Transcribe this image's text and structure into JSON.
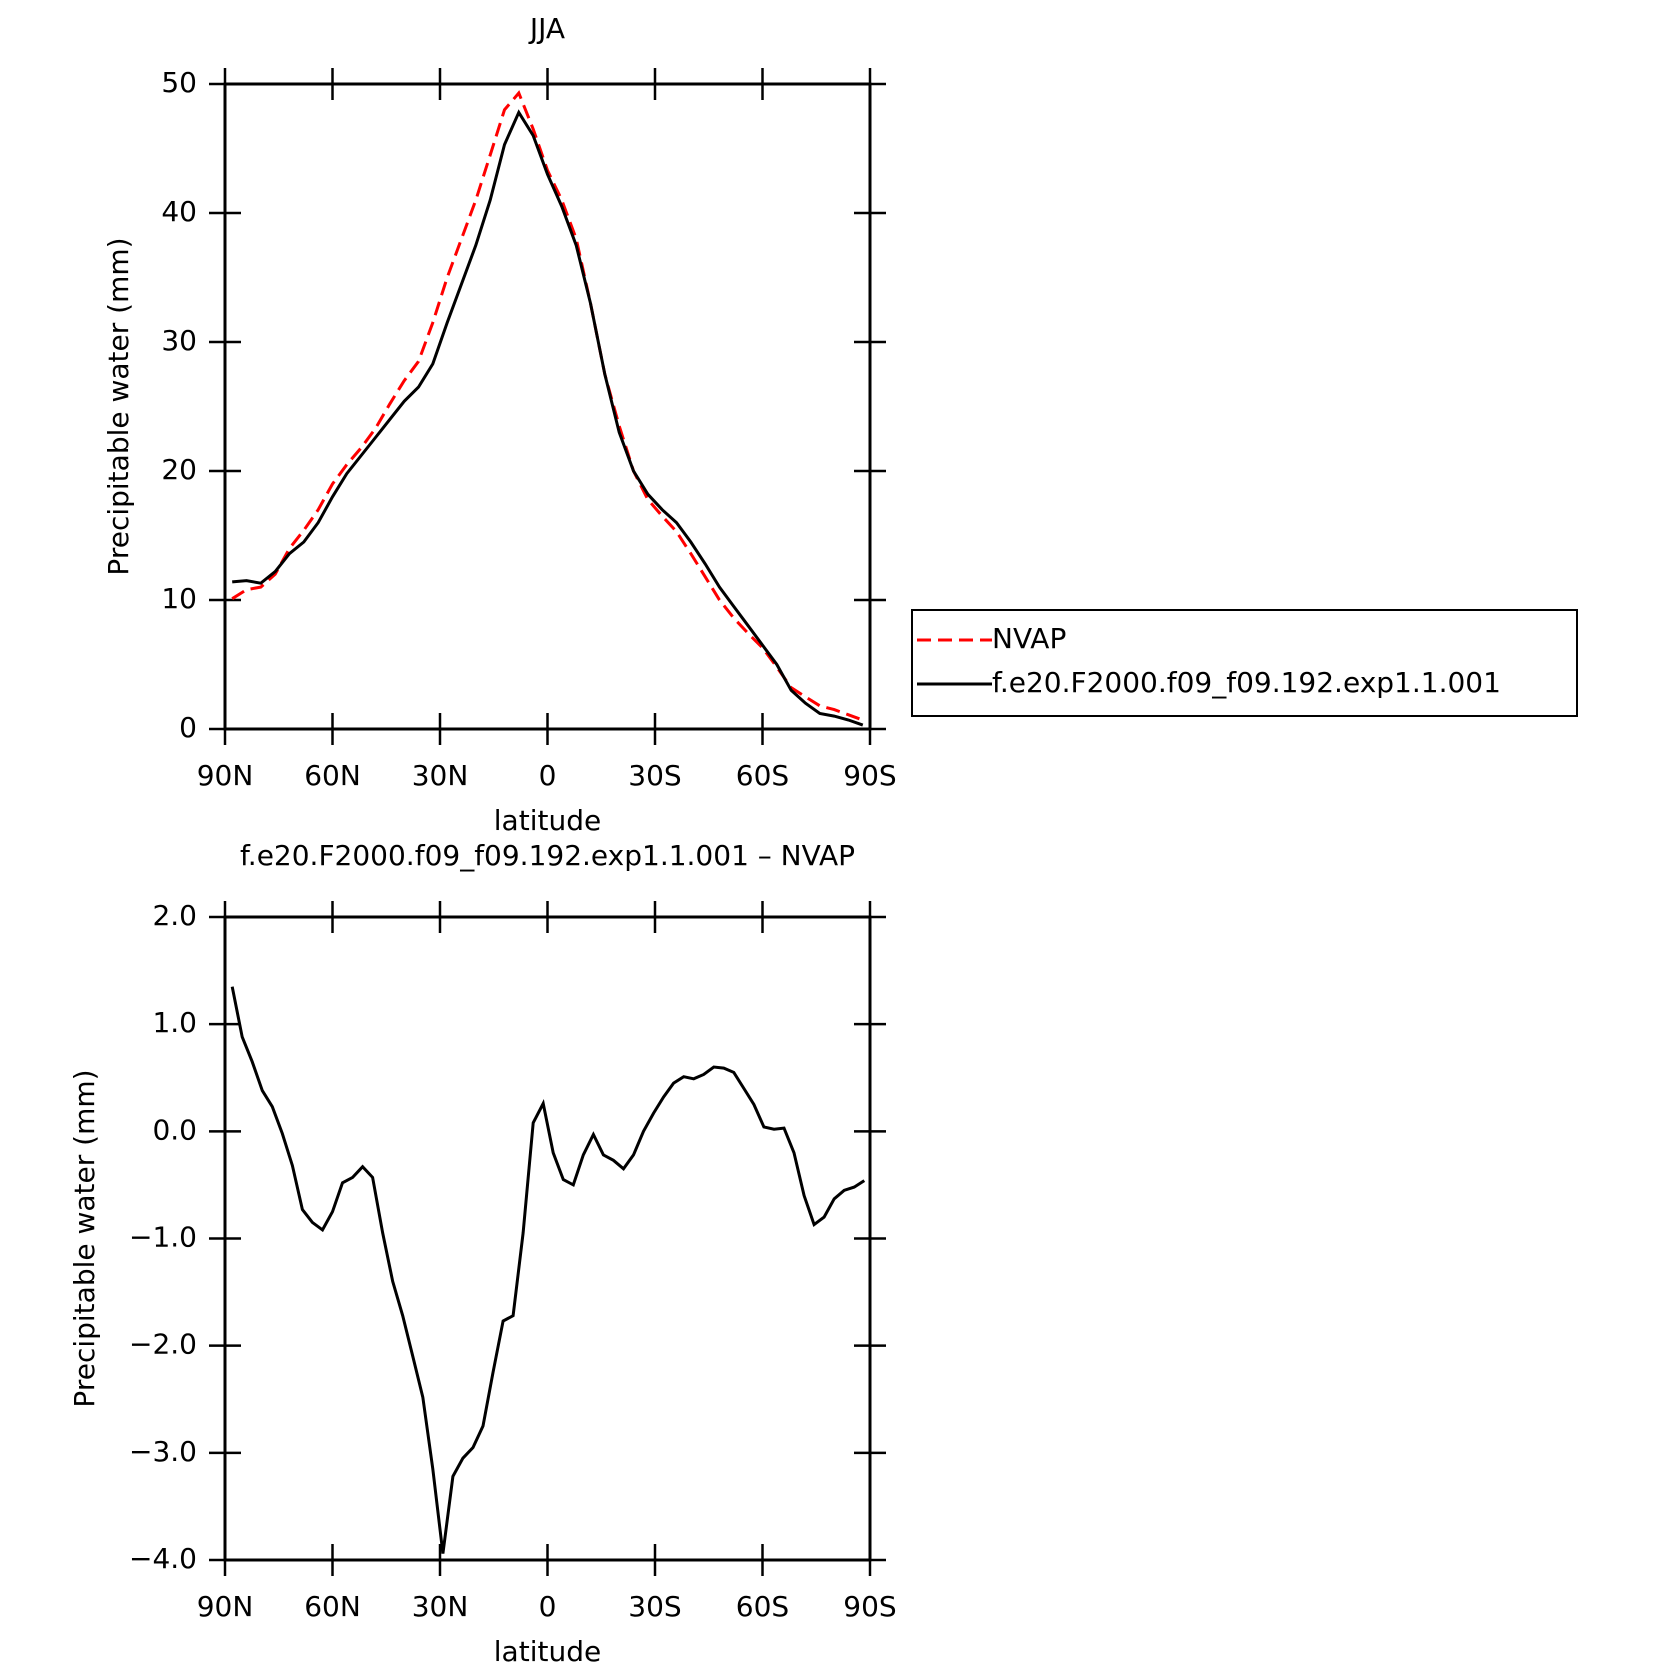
{
  "chart_data": [
    {
      "type": "line",
      "title": "JJA",
      "xlabel": "latitude",
      "ylabel": "Precipitable water (mm)",
      "xlim": [
        90,
        -90
      ],
      "ylim": [
        0,
        50
      ],
      "xticks": [
        {
          "value": 90,
          "label": "90N"
        },
        {
          "value": 60,
          "label": "60N"
        },
        {
          "value": 30,
          "label": "30N"
        },
        0,
        {
          "value": -30,
          "label": "30S"
        },
        {
          "value": -60,
          "label": "60S"
        },
        {
          "value": -90,
          "label": "90S"
        }
      ],
      "yticks": [
        0,
        10,
        20,
        30,
        40,
        50
      ],
      "legend": "right",
      "x": [
        88,
        84,
        80,
        76,
        72,
        68,
        64,
        60,
        56,
        52,
        48,
        44,
        40,
        36,
        32,
        28,
        24,
        20,
        16,
        12,
        8,
        4,
        0,
        -4,
        -8,
        -12,
        -16,
        -20,
        -24,
        -28,
        -32,
        -36,
        -40,
        -44,
        -48,
        -52,
        -56,
        -60,
        -64,
        -68,
        -72,
        -76,
        -80,
        -84,
        -88
      ],
      "series": [
        {
          "name": "NVAP",
          "color": "#ff0000",
          "style": "dashed",
          "values": [
            10.1,
            10.8,
            11.0,
            12.0,
            14.0,
            15.4,
            17.0,
            19.0,
            20.5,
            21.8,
            23.3,
            25.2,
            27.0,
            28.5,
            31.5,
            35.0,
            38.0,
            41.0,
            44.5,
            48.0,
            49.3,
            46.5,
            43.3,
            41.0,
            38.0,
            33.0,
            27.5,
            23.5,
            20.0,
            17.8,
            16.5,
            15.3,
            13.6,
            11.8,
            10.0,
            8.6,
            7.4,
            6.3,
            4.8,
            3.2,
            2.5,
            1.8,
            1.5,
            1.1,
            0.7
          ]
        },
        {
          "name": "f.e20.F2000.f09_f09.192.exp1.1.001",
          "color": "#000000",
          "style": "solid",
          "values": [
            11.4,
            11.5,
            11.3,
            12.2,
            13.6,
            14.5,
            16.0,
            18.0,
            19.8,
            21.2,
            22.6,
            24.0,
            25.4,
            26.5,
            28.3,
            31.5,
            34.5,
            37.5,
            41.0,
            45.3,
            47.8,
            46.0,
            43.0,
            40.5,
            37.5,
            33.0,
            27.5,
            23.0,
            20.0,
            18.2,
            17.0,
            16.0,
            14.5,
            12.8,
            11.0,
            9.5,
            8.0,
            6.5,
            5.0,
            3.0,
            2.0,
            1.2,
            1.0,
            0.7,
            0.3
          ]
        }
      ]
    },
    {
      "type": "line",
      "title": "f.e20.F2000.f09_f09.192.exp1.1.001 – NVAP",
      "xlabel": "latitude",
      "ylabel": "Precipitable water (mm)",
      "xlim": [
        90,
        -90
      ],
      "ylim": [
        -4,
        2
      ],
      "xticks": [
        {
          "value": 90,
          "label": "90N"
        },
        {
          "value": 60,
          "label": "60N"
        },
        {
          "value": 30,
          "label": "30N"
        },
        0,
        {
          "value": -30,
          "label": "30S"
        },
        {
          "value": -60,
          "label": "60S"
        },
        {
          "value": -90,
          "label": "90S"
        }
      ],
      "yticks": [
        {
          "value": -4,
          "label": "−4.0"
        },
        {
          "value": -3,
          "label": "−3.0"
        },
        {
          "value": -2,
          "label": "−2.0"
        },
        {
          "value": -1,
          "label": "−1.0"
        },
        {
          "value": 0,
          "label": "0.0"
        },
        {
          "value": 1,
          "label": "1.0"
        },
        {
          "value": 2,
          "label": "2.0"
        }
      ],
      "x": [
        88.0,
        85.2,
        82.4,
        79.6,
        76.8,
        74.0,
        71.2,
        68.4,
        65.6,
        62.8,
        60.0,
        57.2,
        54.4,
        51.6,
        48.8,
        46.0,
        43.2,
        40.4,
        37.6,
        34.8,
        32.0,
        29.2,
        26.4,
        23.6,
        20.8,
        18.0,
        15.2,
        12.4,
        9.6,
        6.8,
        4.0,
        1.2,
        -1.6,
        -4.4,
        -7.2,
        -10.0,
        -12.8,
        -15.6,
        -18.4,
        -21.2,
        -24.0,
        -26.8,
        -29.6,
        -32.4,
        -35.2,
        -38.0,
        -40.8,
        -43.6,
        -46.4,
        -49.2,
        -52.0,
        -54.8,
        -57.6,
        -60.4,
        -63.2,
        -66.0,
        -68.8,
        -71.6,
        -74.4,
        -77.2,
        -80.0,
        -82.8,
        -85.6,
        -88.4
      ],
      "series": [
        {
          "color": "#000000",
          "style": "solid",
          "values": [
            1.35,
            0.88,
            0.65,
            0.38,
            0.23,
            -0.02,
            -0.32,
            -0.73,
            -0.85,
            -0.92,
            -0.75,
            -0.48,
            -0.43,
            -0.33,
            -0.43,
            -0.95,
            -1.4,
            -1.72,
            -2.1,
            -2.48,
            -3.15,
            -3.94,
            -3.22,
            -3.05,
            -2.95,
            -2.75,
            -2.25,
            -1.77,
            -1.72,
            -0.95,
            0.08,
            0.26,
            -0.2,
            -0.45,
            -0.5,
            -0.22,
            -0.03,
            -0.22,
            -0.27,
            -0.35,
            -0.22,
            0.0,
            0.17,
            0.32,
            0.45,
            0.51,
            0.49,
            0.53,
            0.6,
            0.59,
            0.55,
            0.4,
            0.25,
            0.04,
            0.02,
            0.03,
            -0.2,
            -0.6,
            -0.87,
            -0.8,
            -0.63,
            -0.55,
            -0.52,
            -0.46
          ]
        }
      ]
    }
  ]
}
